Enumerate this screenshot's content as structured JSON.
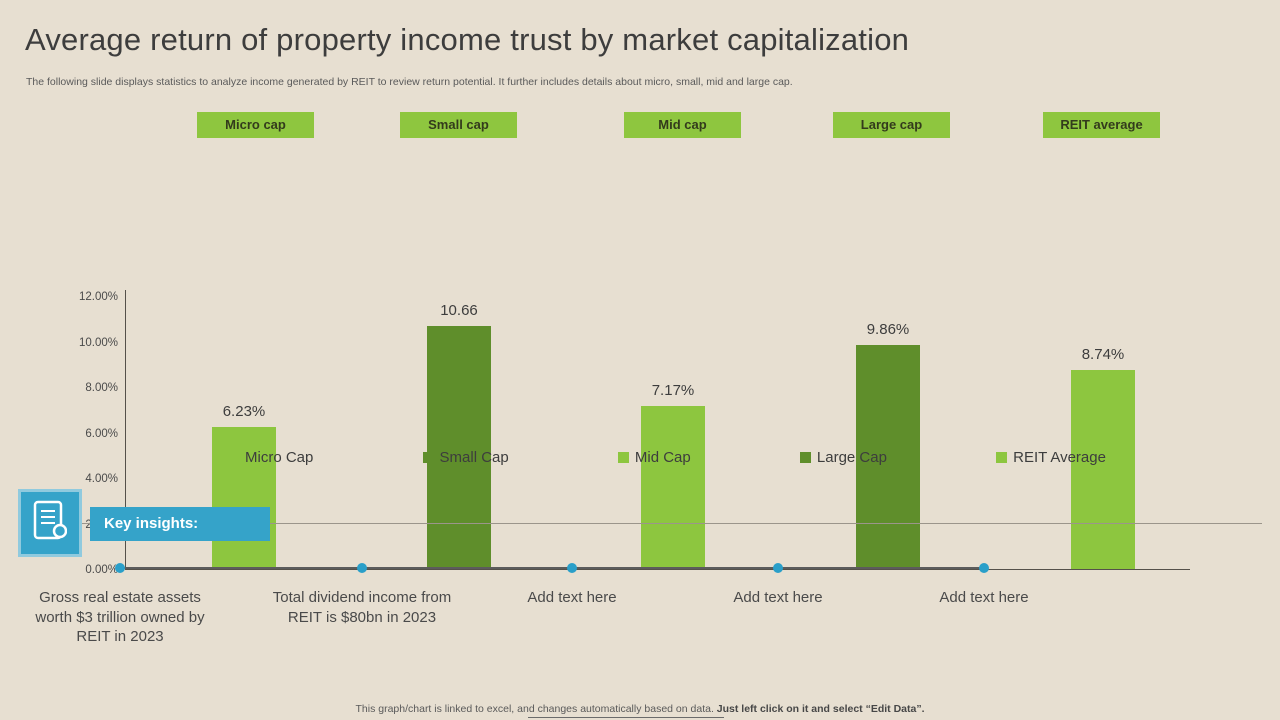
{
  "slide": {
    "title": "Average return of property income trust by market capitalization",
    "subtitle": "The following slide displays statistics to analyze income generated by REIT to review return potential. It further includes details about micro, small, mid and large cap.",
    "footer_text": "This graph/chart is linked to excel, and changes automatically based on data. ",
    "footer_bold": "Just left click on it and select “Edit Data”."
  },
  "category_headers": [
    "Micro cap",
    "Small cap",
    "Mid cap",
    "Large cap",
    "REIT average"
  ],
  "chart_data": {
    "type": "bar",
    "categories": [
      "Micro Cap",
      "Small Cap",
      "Mid Cap",
      "Large Cap",
      "REIT Average"
    ],
    "values": [
      6.23,
      10.66,
      7.17,
      9.86,
      8.74
    ],
    "data_labels": [
      "6.23%",
      "10.66",
      "7.17%",
      "9.86%",
      "8.74%"
    ],
    "bar_colors": [
      "#8dc63f",
      "#5f8e2b",
      "#8dc63f",
      "#5f8e2b",
      "#8dc63f"
    ],
    "title": "",
    "xlabel": "",
    "ylabel": "",
    "ylim": [
      0,
      12
    ],
    "yticks": [
      12,
      10,
      8,
      6,
      4,
      2,
      0
    ],
    "ytick_labels": [
      "12.00%",
      "10.00%",
      "8.00%",
      "6.00%",
      "4.00%",
      "2.00%",
      "0.00%"
    ],
    "grid": false,
    "legend_position": "bottom",
    "legend": [
      {
        "label": "Micro Cap",
        "color": "#8dc63f"
      },
      {
        "label": "Small Cap",
        "color": "#5f8e2b"
      },
      {
        "label": "Mid Cap",
        "color": "#8dc63f"
      },
      {
        "label": "Large Cap",
        "color": "#5f8e2b"
      },
      {
        "label": "REIT Average",
        "color": "#8dc63f"
      }
    ]
  },
  "key_insights": {
    "label": "Key insights:",
    "items": [
      "Gross real estate assets worth $3 trillion owned by REIT in 2023",
      "Total dividend income from REIT is $80bn in 2023",
      "Add text here",
      "Add text here",
      "Add text here"
    ]
  },
  "colors": {
    "light_green": "#8dc63f",
    "dark_green": "#5f8e2b",
    "accent_blue": "#35a3c9",
    "background": "#e7dfd1"
  }
}
